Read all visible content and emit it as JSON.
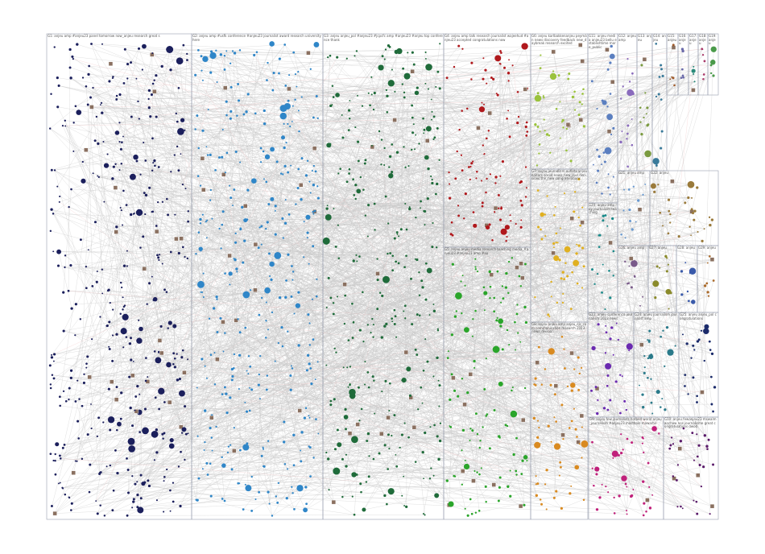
{
  "groups": [
    {
      "label": "G1: anjeu amp #anjeu23 panel tomorrow now_anjeu research great s",
      "color": "#1b1f5c"
    },
    {
      "label": "G2: anjeu amp #usfk conference #anjeu23 journalist award research university here",
      "color": "#2f86c8"
    },
    {
      "label": "G3: anjeu anjeu_pol #anjeu23 #jcpcfc amp #anjeu23 #anjeu top conference thank",
      "color": "#1f6b3a"
    },
    {
      "label": "G4: anjeu amp talk research journalist wajeehud #anjeu23 accepted congratulations now",
      "color": "#b0181c"
    },
    {
      "label": "G5: anjeu anjeu media research teaching media_#anjeu23 #anjeu23 amp #aa",
      "color": "#2aa52a"
    },
    {
      "label": "G6: anjeu karlbakkenanjeu peymán news discovery feedback new_daybreak research excited",
      "color": "#9ac23c"
    },
    {
      "label": "G7: anjeu journalism outlets anjeu editors social news_new_jour decisions the_new congratulations",
      "color": "#e0b020"
    },
    {
      "label": "G8: anjeu anjeu amp anjeu_cjs_cvm communication research 2023 news_division",
      "color": "#d98a20"
    },
    {
      "label": "G9: anjeu few journalists hotbed world anjeu_journalism #anjeu23 masthole mawarhe",
      "color": "#c0207a"
    },
    {
      "label": "G10: anjeu fewanjeu23 mswalmanchaw nos journalisme great congratulations dwod",
      "color": "#5a1a6a"
    },
    {
      "label": "G11: anjeu media anjeu23 bellu establishtime more_public",
      "color": "#5b7fc0"
    },
    {
      "label": "G12: anjeu amp",
      "color": "#8a6bbd"
    },
    {
      "label": "G13: anjeu",
      "color": "#7a9a40"
    },
    {
      "label": "G14: anjeu",
      "color": "#3a7a9a"
    },
    {
      "label": "G15: anjeu",
      "color": "#a05a2a"
    },
    {
      "label": "G16: anjeu",
      "color": "#6a6aaa"
    },
    {
      "label": "G17: anjeu",
      "color": "#2a8a7a"
    },
    {
      "label": "G18: anjeu",
      "color": "#aa3a6a"
    },
    {
      "label": "G19: anjeu",
      "color": "#4a9a4a"
    },
    {
      "label": "G20: anjeu amp roy journalism teaching",
      "color": "#1a8a8a"
    },
    {
      "label": "G21: anjeu amp",
      "color": "#6a9ad0"
    },
    {
      "label": "G22: anjeu",
      "color": "#9a7a3a"
    },
    {
      "label": "G23: anjeu conference journalism 2023 news",
      "color": "#6a2ab0"
    },
    {
      "label": "G24: anjeu journalism journalist amp",
      "color": "#2a7a8a"
    },
    {
      "label": "G25: anjeu anjeu_pol congratulations",
      "color": "#1a2a6a"
    },
    {
      "label": "G26: anjeu amp",
      "color": "#7a5a8a"
    },
    {
      "label": "G27: anjeu",
      "color": "#8a8a2a"
    },
    {
      "label": "G28: anjeu",
      "color": "#3a5aaa"
    },
    {
      "label": "G29: anjeu",
      "color": "#aa6a2a"
    }
  ]
}
